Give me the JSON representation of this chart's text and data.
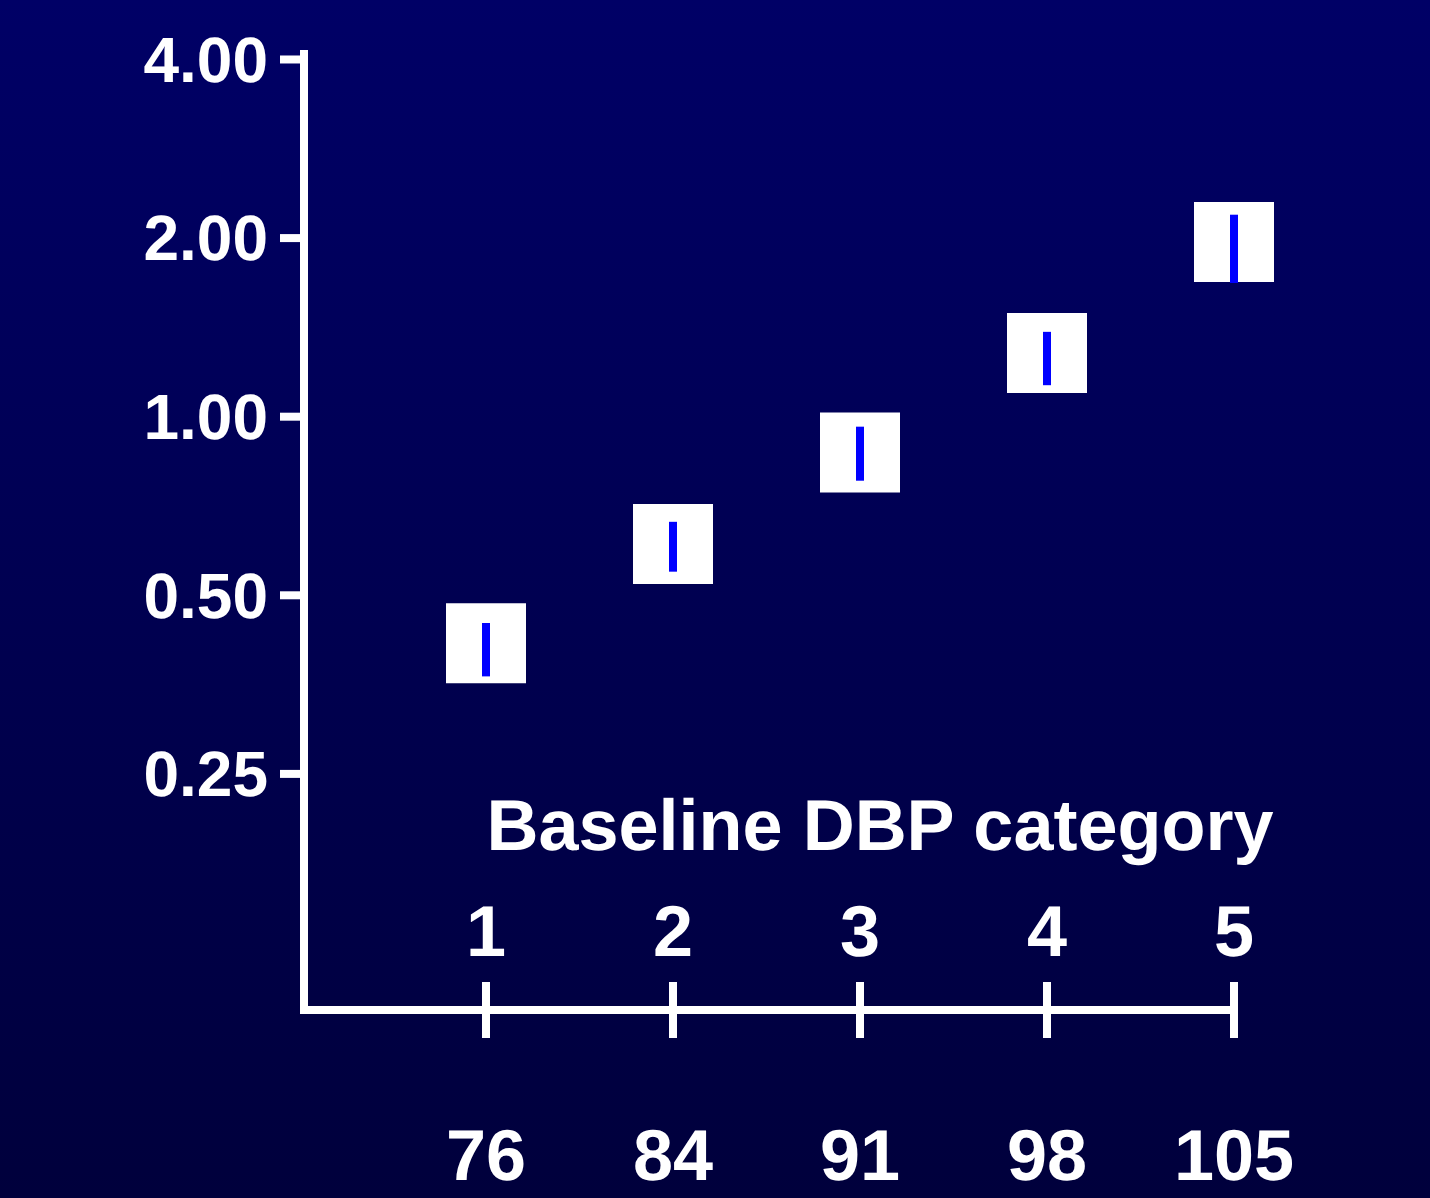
{
  "chart_data": {
    "type": "scatter",
    "xlabel": "Baseline DBP category",
    "categories": [
      "76",
      "84",
      "91",
      "98",
      "105"
    ],
    "values": [
      0.415,
      0.61,
      0.87,
      1.28,
      1.97
    ],
    "errors": [
      [
        0.365,
        0.449
      ],
      [
        0.548,
        0.665
      ],
      [
        0.78,
        0.962
      ],
      [
        1.13,
        1.39
      ],
      [
        1.68,
        2.19
      ]
    ],
    "color": "#ffffff",
    "marker": "square",
    "log": "y",
    "ylim": [
      0.1,
      4.15
    ],
    "yticks": [
      {
        "value": 0.25,
        "label": "0.25"
      },
      {
        "value": 0.5,
        "label": "0.50"
      },
      {
        "value": 1,
        "label": "1.00"
      },
      {
        "value": 2,
        "label": "2.00"
      },
      {
        "value": 4,
        "label": "4.00"
      }
    ],
    "annotations": [
      {
        "text": "1",
        "x": "76"
      },
      {
        "text": "2",
        "x": "84"
      },
      {
        "text": "3",
        "x": "91"
      },
      {
        "text": "4",
        "x": "98"
      },
      {
        "text": "5",
        "x": "105"
      }
    ],
    "grid": false
  }
}
